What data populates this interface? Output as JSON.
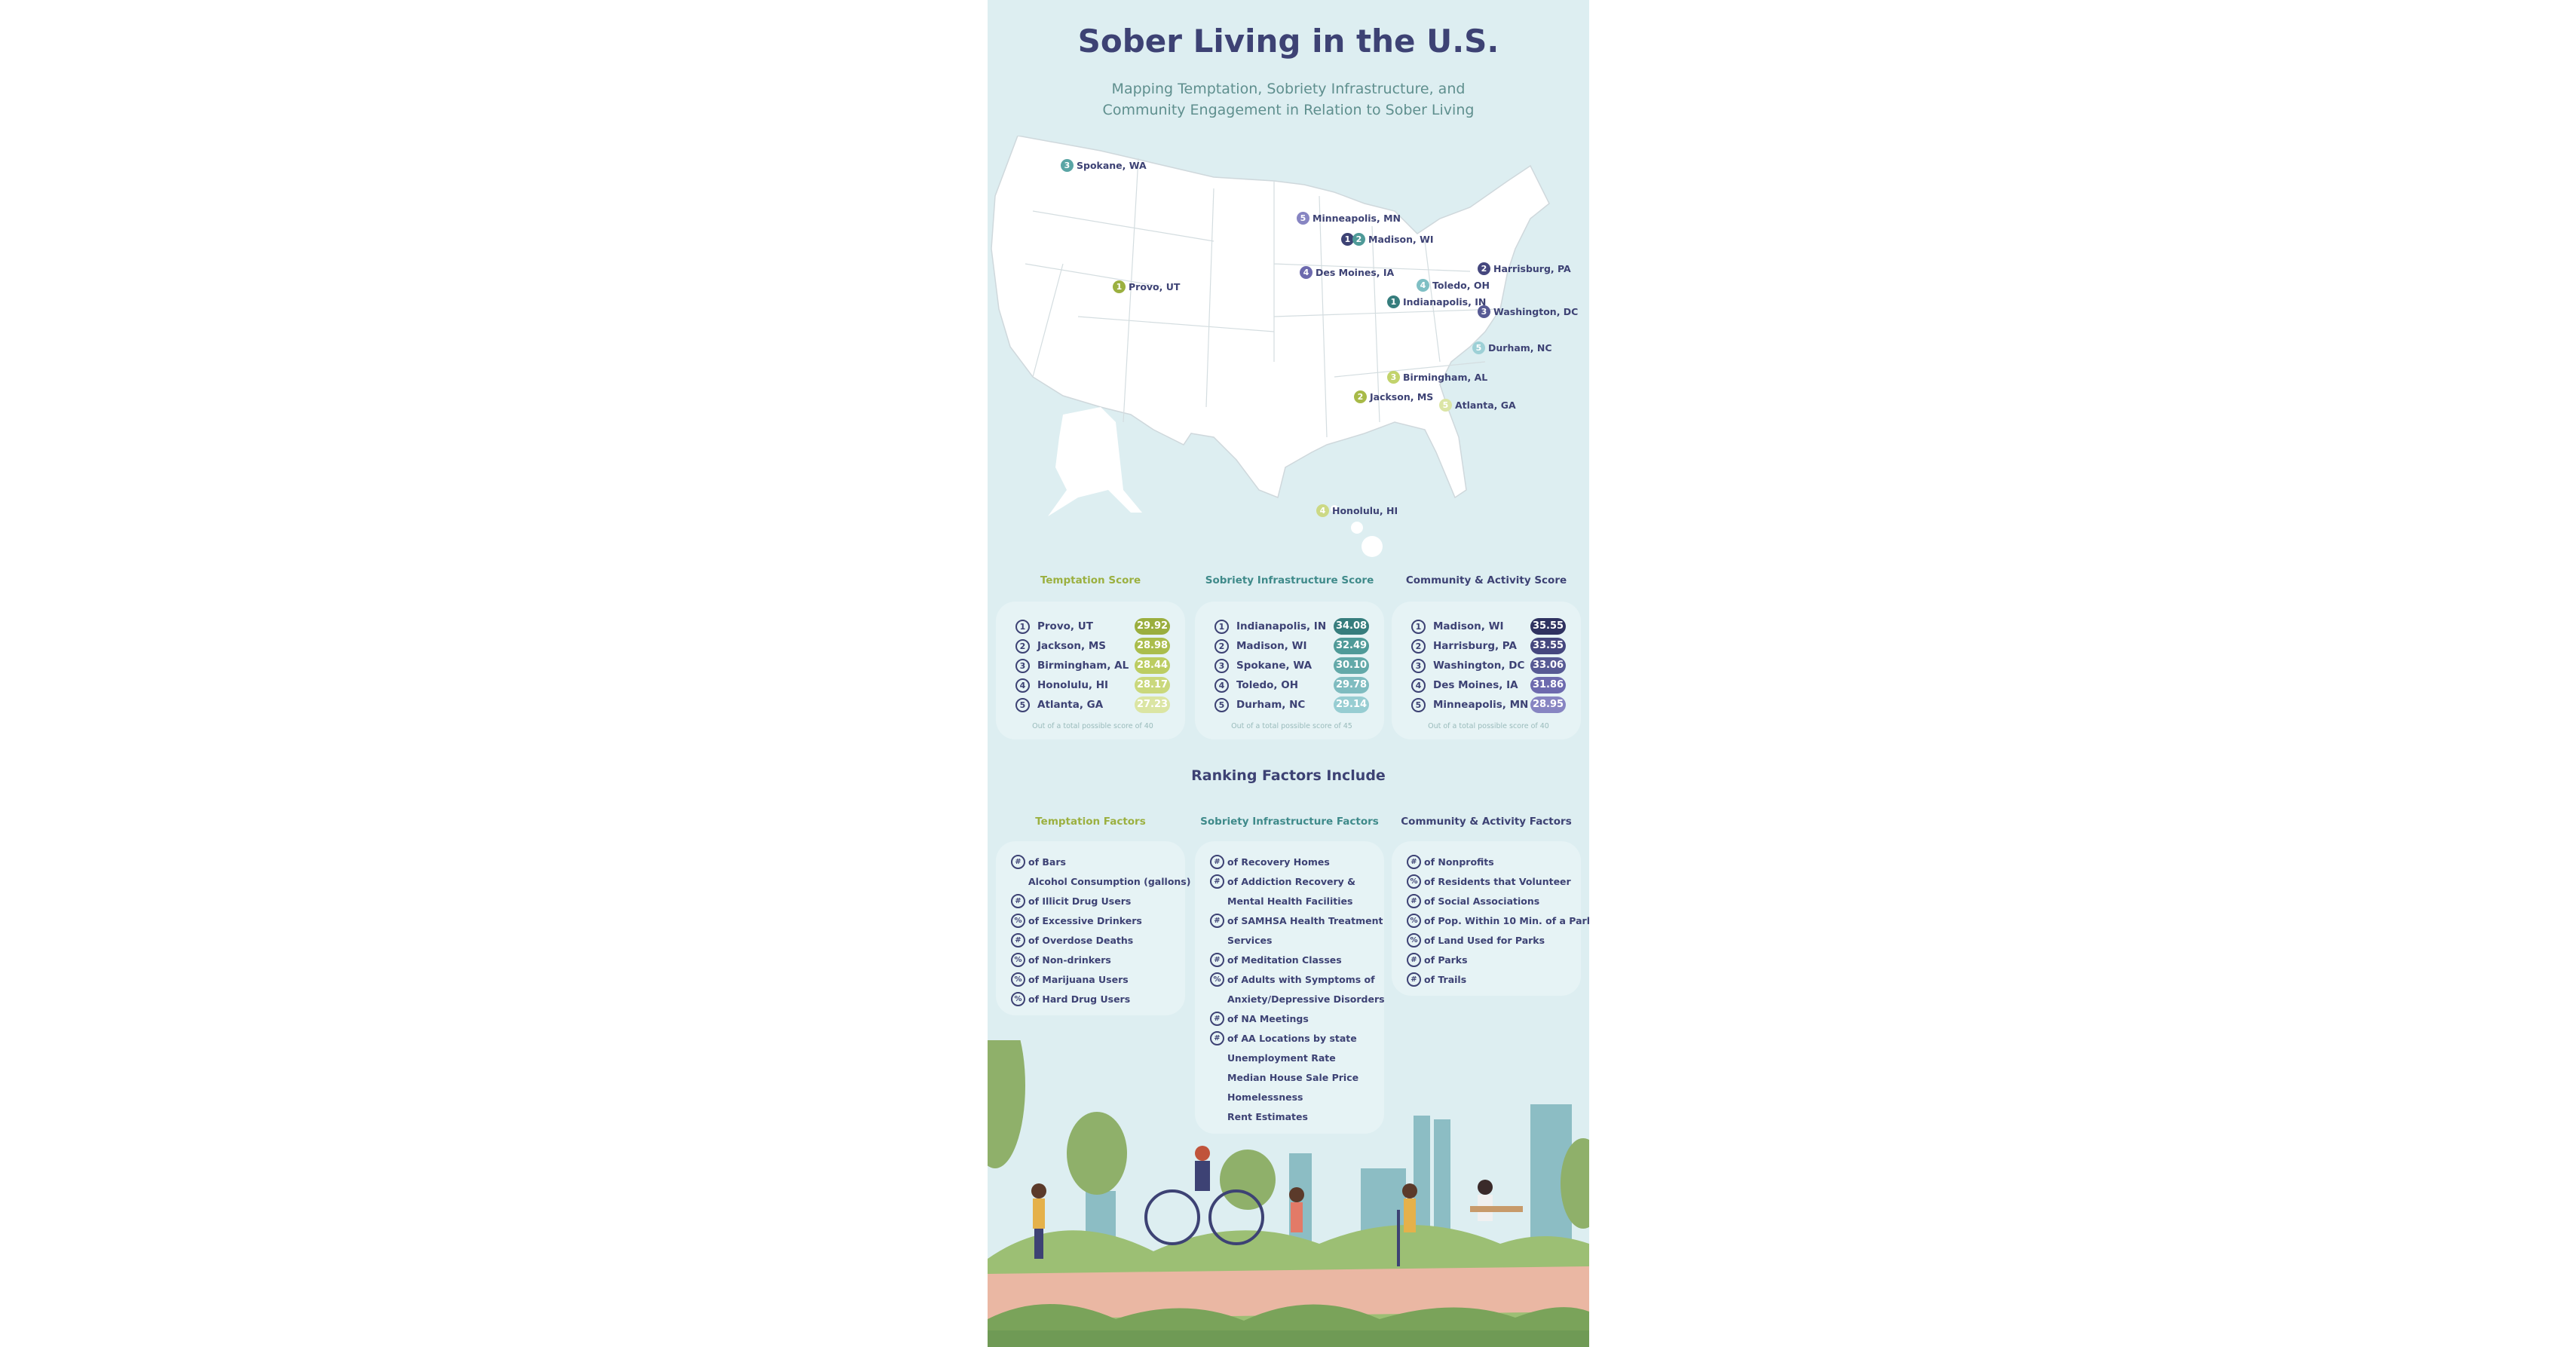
{
  "header": {
    "title": "Sober Living in the U.S.",
    "subtitle_line1": "Mapping Temptation, Sobriety Infrastructure, and",
    "subtitle_line2": "Community Engagement in Relation to Sober Living"
  },
  "colors": {
    "background": "#ddeef1",
    "navy": "#3d4274",
    "temptation": "#9bb040",
    "infrastructure": "#3f8a8a",
    "community": "#3d4274"
  },
  "map_pins": [
    {
      "rank": "3",
      "city": "Spokane, WA",
      "color": "#5aa5a5"
    },
    {
      "rank": "5",
      "city": "Minneapolis, MN",
      "color": "#8785c2"
    },
    {
      "rank": "1",
      "rank2": "2",
      "city": "Madison, WI",
      "color": "#3d4274",
      "color2": "#4f9a98"
    },
    {
      "rank": "4",
      "city": "Des Moines, IA",
      "color": "#6d6aae"
    },
    {
      "rank": "2",
      "city": "Harrisburg, PA",
      "color": "#45477e"
    },
    {
      "rank": "4",
      "city": "Toledo, OH",
      "color": "#7fbfc4"
    },
    {
      "rank": "1",
      "city": "Indianapolis, IN",
      "color": "#367d7d"
    },
    {
      "rank": "3",
      "city": "Washington, DC",
      "color": "#575a94"
    },
    {
      "rank": "1",
      "city": "Provo, UT",
      "color": "#9bb040"
    },
    {
      "rank": "5",
      "city": "Durham, NC",
      "color": "#9dd0d6"
    },
    {
      "rank": "3",
      "city": "Birmingham, AL",
      "color": "#c2d36c"
    },
    {
      "rank": "2",
      "city": "Jackson, MS",
      "color": "#a8ba48"
    },
    {
      "rank": "5",
      "city": "Atlanta, GA",
      "color": "#dbe5a5"
    },
    {
      "rank": "4",
      "city": "Honolulu, HI",
      "color": "#ccd985"
    }
  ],
  "scores": [
    {
      "title": "Temptation Score",
      "color": "#9bb040",
      "note": "Out of a total possible score of 40",
      "rows": [
        {
          "rank": "1",
          "city": "Provo, UT",
          "score": "29.92",
          "color": "#9aae3e"
        },
        {
          "rank": "2",
          "city": "Jackson, MS",
          "score": "28.98",
          "color": "#aabd4c"
        },
        {
          "rank": "3",
          "city": "Birmingham, AL",
          "score": "28.44",
          "color": "#bccd62"
        },
        {
          "rank": "4",
          "city": "Honolulu, HI",
          "score": "28.17",
          "color": "#cad87c"
        },
        {
          "rank": "5",
          "city": "Atlanta, GA",
          "score": "27.23",
          "color": "#dbe5a3"
        }
      ]
    },
    {
      "title": "Sobriety Infrastructure Score",
      "color": "#3f8a8a",
      "note": "Out of a total possible score of 45",
      "rows": [
        {
          "rank": "1",
          "city": "Indianapolis, IN",
          "score": "34.08",
          "color": "#367d7d"
        },
        {
          "rank": "2",
          "city": "Madison, WI",
          "score": "32.49",
          "color": "#4f9a98"
        },
        {
          "rank": "3",
          "city": "Spokane, WA",
          "score": "30.10",
          "color": "#63a9a9"
        },
        {
          "rank": "4",
          "city": "Toledo, OH",
          "score": "29.78",
          "color": "#7fbcc0"
        },
        {
          "rank": "5",
          "city": "Durham, NC",
          "score": "29.14",
          "color": "#97cdd2"
        }
      ]
    },
    {
      "title": "Community & Activity Score",
      "color": "#3d4274",
      "note": "Out of a total possible score of 40",
      "rows": [
        {
          "rank": "1",
          "city": "Madison, WI",
          "score": "35.55",
          "color": "#2f3260"
        },
        {
          "rank": "2",
          "city": "Harrisburg, PA",
          "score": "33.55",
          "color": "#45477e"
        },
        {
          "rank": "3",
          "city": "Washington, DC",
          "score": "33.06",
          "color": "#575a94"
        },
        {
          "rank": "4",
          "city": "Des Moines, IA",
          "score": "31.86",
          "color": "#6d6aae"
        },
        {
          "rank": "5",
          "city": "Minneapolis, MN",
          "score": "28.95",
          "color": "#8785c2"
        }
      ]
    }
  ],
  "ranking_title": "Ranking Factors Include",
  "factors": [
    {
      "title": "Temptation Factors",
      "color": "#9bb040",
      "items": [
        {
          "sym": "#",
          "text": "of Bars"
        },
        {
          "sym": "",
          "text": "Alcohol Consumption (gallons)"
        },
        {
          "sym": "#",
          "text": "of Illicit Drug Users"
        },
        {
          "sym": "%",
          "text": "of Excessive Drinkers"
        },
        {
          "sym": "#",
          "text": "of Overdose Deaths"
        },
        {
          "sym": "%",
          "text": "of Non-drinkers"
        },
        {
          "sym": "%",
          "text": "of Marijuana Users"
        },
        {
          "sym": "%",
          "text": "of Hard Drug Users"
        }
      ]
    },
    {
      "title": "Sobriety Infrastructure Factors",
      "color": "#3f8a8a",
      "items": [
        {
          "sym": "#",
          "text": "of Recovery Homes"
        },
        {
          "sym": "#",
          "text": "of Addiction Recovery &"
        },
        {
          "sym": "",
          "text": "Mental Health Facilities"
        },
        {
          "sym": "#",
          "text": "of SAMHSA Health Treatment"
        },
        {
          "sym": "",
          "text": "Services"
        },
        {
          "sym": "#",
          "text": "of Meditation Classes"
        },
        {
          "sym": "%",
          "text": "of Adults with Symptoms of"
        },
        {
          "sym": "",
          "text": "Anxiety/Depressive Disorders"
        },
        {
          "sym": "#",
          "text": "of NA Meetings"
        },
        {
          "sym": "#",
          "text": "of AA Locations by state"
        },
        {
          "sym": "",
          "text": "Unemployment Rate"
        },
        {
          "sym": "",
          "text": "Median House Sale Price"
        },
        {
          "sym": "",
          "text": "Homelessness"
        },
        {
          "sym": "",
          "text": "Rent Estimates"
        }
      ]
    },
    {
      "title": "Community & Activity Factors",
      "color": "#3d4274",
      "items": [
        {
          "sym": "#",
          "text": "of Nonprofits"
        },
        {
          "sym": "%",
          "text": "of Residents that Volunteer"
        },
        {
          "sym": "#",
          "text": "of Social Associations"
        },
        {
          "sym": "%",
          "text": "of Pop. Within 10 Min. of a Park"
        },
        {
          "sym": "%",
          "text": "of Land Used for Parks"
        },
        {
          "sym": "#",
          "text": "of Parks"
        },
        {
          "sym": "#",
          "text": "of Trails"
        }
      ]
    }
  ]
}
